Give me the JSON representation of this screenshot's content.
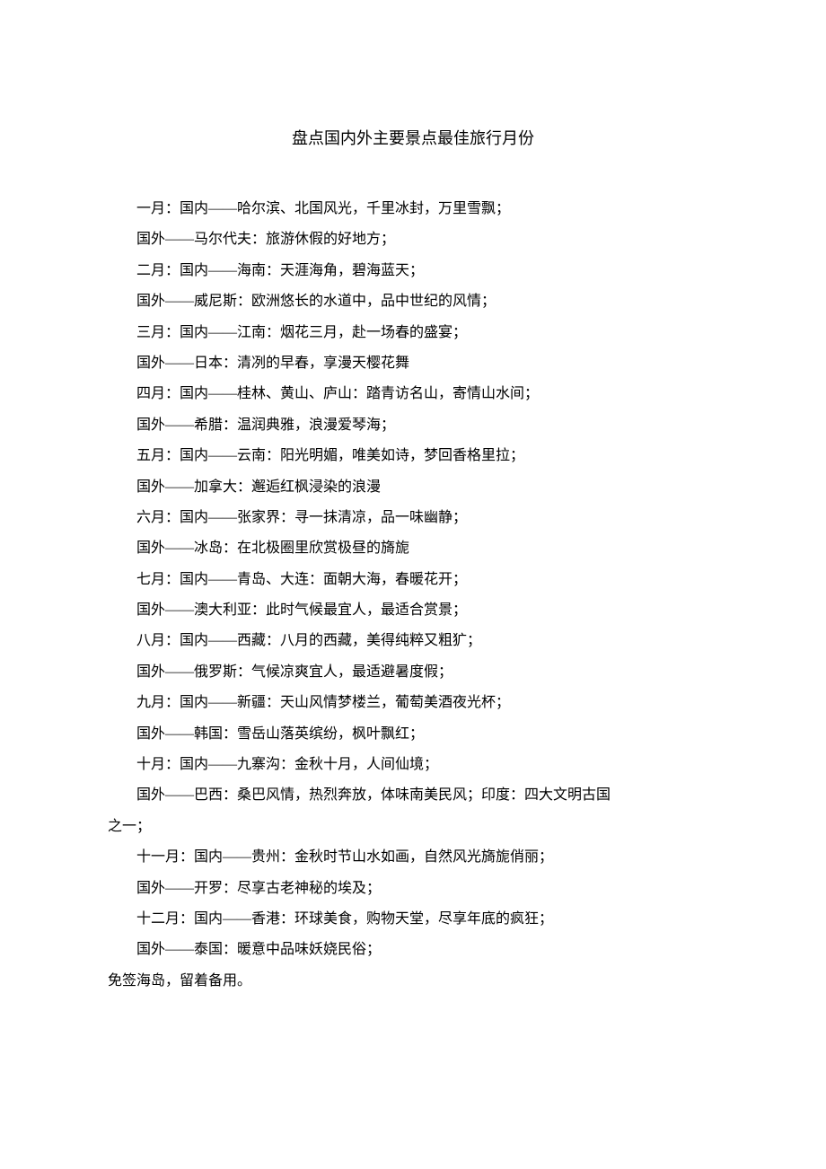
{
  "title": "盘点国内外主要景点最佳旅行月份",
  "lines": [
    "一月：国内——哈尔滨、北国风光，千里冰封，万里雪飘；",
    "国外——马尔代夫：旅游休假的好地方；",
    "二月：国内——海南：天涯海角，碧海蓝天；",
    "国外——威尼斯：欧洲悠长的水道中，品中世纪的风情；",
    "三月：国内——江南：烟花三月，赴一场春的盛宴；",
    "国外——日本：清冽的早春，享漫天樱花舞",
    "四月：国内——桂林、黄山、庐山：踏青访名山，寄情山水间；",
    "国外——希腊：温润典雅，浪漫爱琴海；",
    "五月：国内——云南：阳光明媚，唯美如诗，梦回香格里拉；",
    "国外——加拿大：邂逅红枫浸染的浪漫",
    "六月：国内——张家界：寻一抹清凉，品一味幽静；",
    "国外——冰岛：在北极圈里欣赏极昼的旖旎",
    "七月：国内——青岛、大连：面朝大海，春暖花开；",
    "国外——澳大利亚：此时气候最宜人，最适合赏景；",
    "八月：国内——西藏：八月的西藏，美得纯粹又粗犷；",
    "国外——俄罗斯：气候凉爽宜人，最适避暑度假；",
    "九月：国内——新疆：天山风情梦楼兰，葡萄美酒夜光杯；",
    "国外——韩国：雪岳山落英缤纷，枫叶飘红；",
    "十月：国内——九寨沟：金秋十月，人间仙境；",
    "国外——巴西：桑巴风情，热烈奔放，体味南美民风；印度：四大文明古国",
    "之一；",
    "十一月：国内——贵州：金秋时节山水如画，自然风光旖旎俏丽；",
    "国外——开罗：尽享古老神秘的埃及；",
    "十二月：国内——香港：环球美食，购物天堂，尽享年底的疯狂；",
    "国外——泰国：暖意中品味妖娆民俗；"
  ],
  "footer": "免签海岛，留着备用。"
}
